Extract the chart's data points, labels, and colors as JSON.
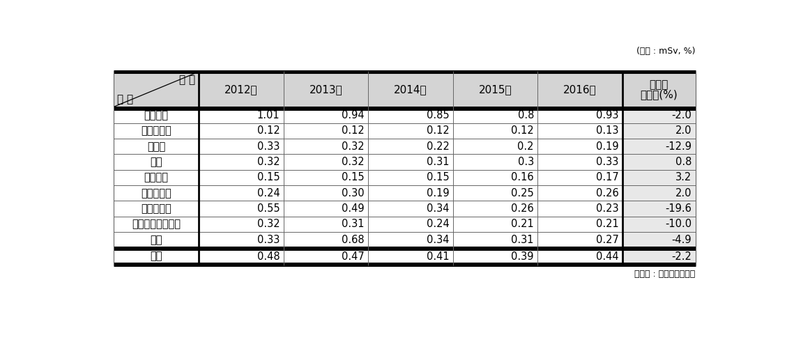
{
  "unit_label": "(단위 : mSv, %)",
  "source_label": "〈출처 : 질병관리본부〉",
  "header_col1_line1": "연 도",
  "header_col1_line2": "구 분",
  "columns": [
    "2012년",
    "2013년",
    "2014년",
    "2015년",
    "2016년",
    "연평균\n증가율(%)"
  ],
  "rows": [
    [
      "방사선사",
      "1.01",
      "0.94",
      "0.85",
      "0.8",
      "0.93",
      "-2.0"
    ],
    [
      "치과위생사",
      "0.12",
      "0.12",
      "0.12",
      "0.12",
      "0.13",
      "2.0"
    ],
    [
      "간호사",
      "0.33",
      "0.32",
      "0.22",
      "0.2",
      "0.19",
      "-12.9"
    ],
    [
      "의사",
      "0.32",
      "0.32",
      "0.31",
      "0.3",
      "0.33",
      "0.8"
    ],
    [
      "치과의사",
      "0.15",
      "0.15",
      "0.15",
      "0.16",
      "0.17",
      "3.2"
    ],
    [
      "간호조무사",
      "0.24",
      "0.30",
      "0.19",
      "0.25",
      "0.26",
      "2.0"
    ],
    [
      "업무보조원",
      "0.55",
      "0.49",
      "0.34",
      "0.26",
      "0.23",
      "-19.6"
    ],
    [
      "영상의학과전문의",
      "0.32",
      "0.31",
      "0.24",
      "0.21",
      "0.21",
      "-10.0"
    ],
    [
      "기타",
      "0.33",
      "0.68",
      "0.34",
      "0.31",
      "0.27",
      "-4.9"
    ]
  ],
  "footer_row": [
    "평균",
    "0.48",
    "0.47",
    "0.41",
    "0.39",
    "0.44",
    "-2.2"
  ],
  "header_bg": "#d4d4d4",
  "body_bg": "#ffffff",
  "last_col_bg": "#e8e8e8",
  "border_color": "#000000",
  "text_color": "#000000",
  "font_size": 10.5,
  "header_font_size": 11
}
